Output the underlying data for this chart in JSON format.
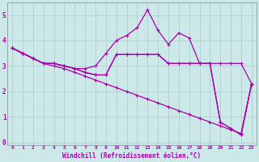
{
  "xlabel": "Windchill (Refroidissement éolien,°C)",
  "bg_color": "#cce8e8",
  "grid_color": "#aacccc",
  "line_color": "#aa00aa",
  "xlim": [
    -0.5,
    23.5
  ],
  "ylim": [
    -0.1,
    5.5
  ],
  "xticks": [
    0,
    1,
    2,
    3,
    4,
    5,
    6,
    7,
    8,
    9,
    10,
    11,
    12,
    13,
    14,
    15,
    16,
    17,
    18,
    19,
    20,
    21,
    22,
    23
  ],
  "yticks": [
    0,
    1,
    2,
    3,
    4,
    5
  ],
  "line_diagonal_x": [
    0,
    1,
    2,
    3,
    4,
    5,
    6,
    7,
    8,
    9,
    10,
    11,
    12,
    13,
    14,
    15,
    16,
    17,
    18,
    19,
    20,
    21,
    22,
    23
  ],
  "line_diagonal_y": [
    3.7,
    3.5,
    3.3,
    3.1,
    3.0,
    2.9,
    2.75,
    2.6,
    2.45,
    2.3,
    2.15,
    2.0,
    1.85,
    1.7,
    1.55,
    1.4,
    1.25,
    1.1,
    0.95,
    0.8,
    0.65,
    0.5,
    0.35,
    2.3
  ],
  "line_upper_x": [
    0,
    1,
    2,
    3,
    4,
    5,
    6,
    7,
    8,
    9,
    10,
    11,
    12,
    13,
    14,
    15,
    16,
    17,
    18,
    19,
    20,
    21,
    22,
    23
  ],
  "line_upper_y": [
    3.7,
    3.5,
    3.3,
    3.1,
    3.1,
    3.0,
    2.9,
    2.9,
    3.0,
    3.5,
    4.0,
    4.2,
    4.5,
    5.2,
    4.4,
    3.85,
    4.3,
    4.1,
    3.1,
    3.1,
    0.8,
    0.55,
    0.3,
    2.3
  ],
  "line_mid1_x": [
    0,
    1,
    2,
    3,
    4,
    5,
    6,
    7,
    8,
    9,
    10,
    11,
    12,
    13,
    14,
    15,
    16,
    17,
    18,
    19,
    20,
    21,
    22,
    23
  ],
  "line_mid1_y": [
    3.7,
    3.5,
    3.3,
    3.1,
    3.1,
    3.0,
    2.9,
    2.75,
    2.65,
    2.65,
    3.45,
    3.45,
    3.45,
    3.45,
    3.45,
    3.1,
    3.1,
    3.1,
    3.1,
    3.1,
    3.1,
    3.1,
    3.1,
    2.3
  ],
  "line_mid2_x": [
    0,
    1,
    2,
    3,
    4,
    5,
    6,
    7,
    8,
    9,
    10,
    11,
    12,
    13,
    14,
    15,
    16,
    17,
    18,
    19,
    20,
    21,
    22,
    23
  ],
  "line_mid2_y": [
    3.7,
    3.5,
    3.3,
    3.1,
    3.1,
    3.0,
    2.9,
    2.75,
    2.65,
    2.65,
    3.45,
    3.45,
    3.45,
    3.45,
    3.45,
    3.1,
    3.1,
    3.1,
    3.1,
    3.1,
    0.8,
    0.55,
    0.3,
    2.3
  ]
}
